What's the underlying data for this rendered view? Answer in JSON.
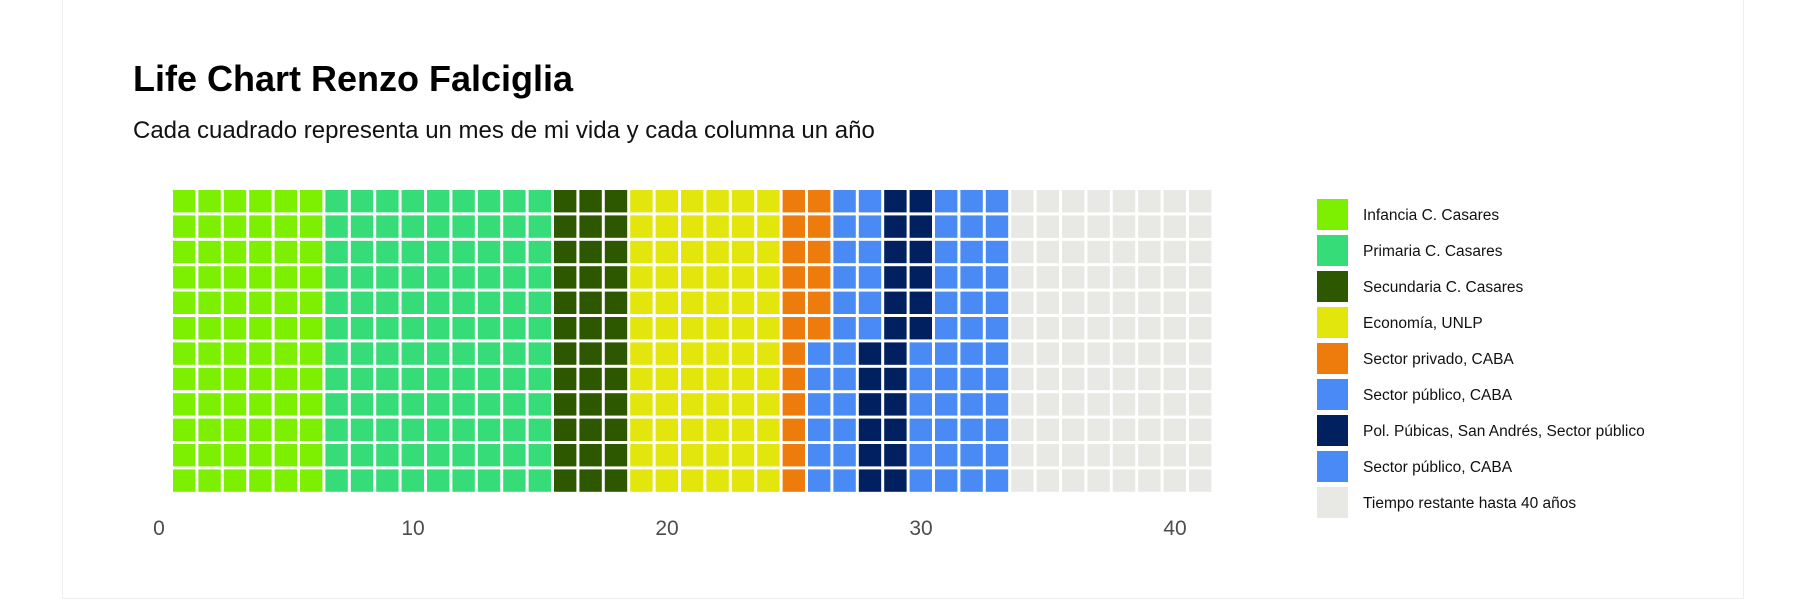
{
  "chart_data": {
    "type": "waffle",
    "title": "Life Chart Renzo Falciglia",
    "subtitle": "Cada cuadrado representa un mes de mi vida y cada columna un año",
    "months_per_column": 12,
    "total_columns": 41,
    "x_ticks": [
      0,
      10,
      20,
      30,
      40
    ],
    "x_range": [
      0,
      41
    ],
    "categories": [
      {
        "label": "Infancia C. Casares",
        "color": "#7cf000",
        "months": 72
      },
      {
        "label": "Primaria C. Casares",
        "color": "#36dc78",
        "months": 108
      },
      {
        "label": "Secundaria C. Casares",
        "color": "#2e5800",
        "months": 36
      },
      {
        "label": "Economía, UNLP",
        "color": "#e2e60c",
        "months": 72
      },
      {
        "label": "Sector privado, CABA",
        "color": "#ee7c0c",
        "months": 18
      },
      {
        "label": "Sector público, CABA",
        "color": "#4a8af4",
        "months": 24
      },
      {
        "label": "Pol. Púbicas, San Andrés, Sector público",
        "color": "#002060",
        "months": 24
      },
      {
        "label": "Sector público, CABA",
        "color": "#4a8af4",
        "months": 42
      },
      {
        "label": "Tiempo restante hasta 40 años",
        "color": "#e8e8e4",
        "months": 96
      }
    ],
    "legend_position": "right"
  }
}
